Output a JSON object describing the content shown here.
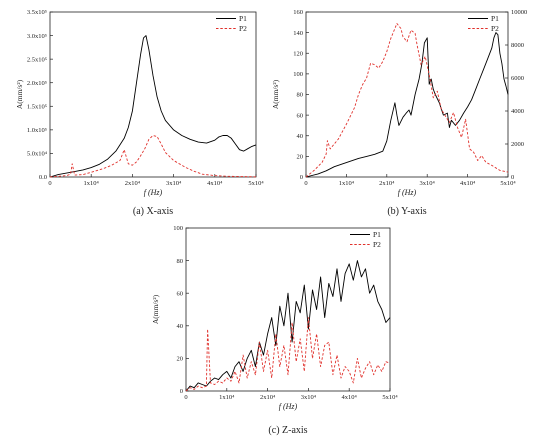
{
  "captions": [
    "(a) X-axis",
    "(b) Y-axis",
    "(c) Z-axis"
  ],
  "chart_data": [
    {
      "type": "line",
      "xlabel": "f (Hz)",
      "ylabel": "A(mm/s²)",
      "xlim": [
        0,
        50000
      ],
      "ylim": [
        0,
        350000
      ],
      "x_ticks": [
        "0",
        "1x10⁴",
        "2x10⁴",
        "3x10⁴",
        "4x10⁴",
        "5x10⁴"
      ],
      "y_ticks": [
        "0.0",
        "5.0x10⁴",
        "1.0x10⁵",
        "1.5x10⁵",
        "2.0x10⁵",
        "2.5x10⁵",
        "3.0x10⁵",
        "3.5x10⁵"
      ],
      "legend_position": "top-right",
      "series": [
        {
          "name": "P1",
          "color": "#000000",
          "dash": "solid",
          "x": [
            0,
            2000,
            5000,
            8000,
            10000,
            12000,
            14000,
            16000,
            18000,
            19000,
            20000,
            21000,
            22000,
            22700,
            23300,
            24000,
            25000,
            26000,
            27000,
            28000,
            30000,
            32000,
            34000,
            36000,
            38000,
            40000,
            41000,
            42000,
            43000,
            44000,
            45000,
            46000,
            47000,
            48000,
            49000,
            50000
          ],
          "y": [
            0,
            5000,
            10000,
            15000,
            20000,
            27000,
            38000,
            55000,
            82000,
            105000,
            140000,
            200000,
            260000,
            295000,
            300000,
            270000,
            215000,
            170000,
            140000,
            120000,
            100000,
            88000,
            80000,
            74000,
            72000,
            78000,
            85000,
            88000,
            88000,
            82000,
            70000,
            58000,
            55000,
            60000,
            65000,
            68000
          ]
        },
        {
          "name": "P2",
          "color": "#e0302b",
          "dash": "dashed",
          "x": [
            0,
            4000,
            5000,
            5400,
            6000,
            8000,
            10000,
            13000,
            15000,
            17000,
            18000,
            19000,
            20000,
            21000,
            22000,
            23000,
            24000,
            25000,
            26000,
            27000,
            28000,
            30000,
            33000,
            35000,
            37000,
            40000,
            43000,
            46000,
            48000,
            50000
          ],
          "y": [
            0,
            3000,
            6000,
            28000,
            4000,
            5000,
            10000,
            18000,
            25000,
            35000,
            58000,
            28000,
            25000,
            32000,
            45000,
            60000,
            80000,
            88000,
            86000,
            70000,
            52000,
            35000,
            20000,
            12000,
            6000,
            3000,
            1500,
            1000,
            600,
            400
          ]
        }
      ]
    },
    {
      "type": "line",
      "xlabel": "f (Hz)",
      "ylabel": "A(mm/s²)",
      "xlim": [
        0,
        50000
      ],
      "ylim": [
        0,
        160
      ],
      "ylim_right": [
        0,
        10000
      ],
      "x_ticks": [
        "0",
        "1x10⁴",
        "2x10⁴",
        "3x10⁴",
        "4x10⁴",
        "5x10⁴"
      ],
      "y_ticks": [
        "0",
        "20",
        "40",
        "60",
        "80",
        "100",
        "120",
        "140",
        "160"
      ],
      "y_ticks_right": [
        "0",
        "2000",
        "4000",
        "6000",
        "8000",
        "10000"
      ],
      "legend_position": "top-right",
      "series": [
        {
          "name": "P1",
          "color": "#000000",
          "dash": "solid",
          "axis": "left",
          "x": [
            0,
            3000,
            5000,
            7000,
            10000,
            13000,
            15000,
            17000,
            19000,
            20000,
            21000,
            22000,
            22500,
            23000,
            24000,
            24800,
            25500,
            26000,
            27000,
            28000,
            28700,
            29300,
            30000,
            30500,
            31000,
            31500,
            32000,
            33000,
            34000,
            35000,
            35500,
            36000,
            37000,
            38000,
            39000,
            40000,
            41000,
            42000,
            43000,
            44000,
            45000,
            46000,
            46500,
            47000,
            47500,
            48000,
            48500,
            49000,
            49500,
            50000
          ],
          "y": [
            0,
            3,
            6,
            10,
            14,
            18,
            20,
            22,
            25,
            35,
            55,
            72,
            60,
            50,
            58,
            62,
            65,
            60,
            80,
            95,
            110,
            130,
            135,
            90,
            95,
            85,
            80,
            72,
            60,
            62,
            48,
            55,
            50,
            55,
            62,
            68,
            75,
            85,
            95,
            105,
            115,
            125,
            135,
            140,
            138,
            120,
            110,
            95,
            88,
            80
          ]
        },
        {
          "name": "P2",
          "color": "#e0302b",
          "dash": "dashed",
          "axis": "right",
          "x": [
            0,
            2000,
            4000,
            5000,
            5300,
            6000,
            8000,
            10000,
            12000,
            13000,
            14000,
            15000,
            16000,
            17000,
            18000,
            19000,
            20000,
            21000,
            22000,
            22500,
            23500,
            24000,
            25000,
            26000,
            27000,
            27500,
            28500,
            29500,
            30500,
            31500,
            32500,
            33500,
            34500,
            35500,
            36500,
            37500,
            38500,
            39500,
            40500,
            41500,
            42500,
            43500,
            44500,
            46000,
            48000,
            50000
          ],
          "y": [
            0,
            400,
            900,
            1400,
            2200,
            1700,
            2300,
            3200,
            4200,
            5000,
            5600,
            6000,
            6900,
            6800,
            6600,
            7000,
            7600,
            8400,
            9000,
            9300,
            9000,
            8500,
            8200,
            8900,
            8700,
            8000,
            6800,
            7300,
            6200,
            4800,
            5200,
            4100,
            3700,
            3300,
            3900,
            3000,
            2400,
            3500,
            1700,
            1500,
            1000,
            1300,
            900,
            700,
            400,
            300
          ]
        }
      ]
    },
    {
      "type": "line",
      "xlabel": "f (Hz)",
      "ylabel": "A(mm/s²)",
      "xlim": [
        0,
        50000
      ],
      "ylim": [
        0,
        100
      ],
      "x_ticks": [
        "0",
        "1x10⁴",
        "2x10⁴",
        "3x10⁴",
        "4x10⁴",
        "5x10⁴"
      ],
      "y_ticks": [
        "0",
        "20",
        "40",
        "60",
        "80",
        "100"
      ],
      "legend_position": "top-right",
      "series": [
        {
          "name": "P1",
          "color": "#000000",
          "dash": "solid",
          "x": [
            0,
            1000,
            2000,
            3000,
            4000,
            5000,
            6000,
            7000,
            8000,
            9000,
            10000,
            11000,
            12000,
            13000,
            14000,
            15000,
            16000,
            17000,
            18000,
            19000,
            20000,
            21000,
            22000,
            23000,
            24000,
            25000,
            26000,
            27000,
            28000,
            29000,
            30000,
            31000,
            32000,
            33000,
            34000,
            35000,
            36000,
            37000,
            38000,
            39000,
            40000,
            41000,
            42000,
            43000,
            44000,
            45000,
            46000,
            47000,
            48000,
            49000,
            50000
          ],
          "y": [
            0,
            3,
            2,
            5,
            4,
            3,
            6,
            8,
            7,
            10,
            12,
            8,
            15,
            18,
            12,
            20,
            25,
            15,
            30,
            22,
            35,
            45,
            28,
            52,
            40,
            60,
            30,
            55,
            48,
            65,
            38,
            62,
            50,
            70,
            45,
            66,
            58,
            75,
            55,
            72,
            78,
            68,
            80,
            70,
            75,
            60,
            65,
            55,
            50,
            42,
            45
          ]
        },
        {
          "name": "P2",
          "color": "#e0302b",
          "dash": "dashed",
          "x": [
            0,
            1000,
            2000,
            3000,
            4000,
            5000,
            5300,
            6000,
            7000,
            8000,
            9000,
            10000,
            11000,
            12000,
            13000,
            14000,
            15000,
            16000,
            17000,
            18000,
            19000,
            20000,
            21000,
            22000,
            23000,
            24000,
            25000,
            26000,
            27000,
            28000,
            29000,
            30000,
            31000,
            32000,
            33000,
            34000,
            35000,
            36000,
            37000,
            38000,
            39000,
            40000,
            41000,
            42000,
            43000,
            44000,
            45000,
            46000,
            47000,
            48000,
            49000,
            50000
          ],
          "y": [
            0,
            2,
            1,
            3,
            2,
            3,
            38,
            5,
            4,
            6,
            5,
            8,
            6,
            12,
            5,
            22,
            8,
            18,
            10,
            30,
            12,
            25,
            8,
            35,
            15,
            28,
            10,
            42,
            18,
            32,
            12,
            45,
            20,
            35,
            15,
            28,
            30,
            10,
            22,
            8,
            15,
            12,
            5,
            20,
            8,
            14,
            18,
            10,
            16,
            12,
            18,
            17
          ]
        }
      ]
    }
  ]
}
